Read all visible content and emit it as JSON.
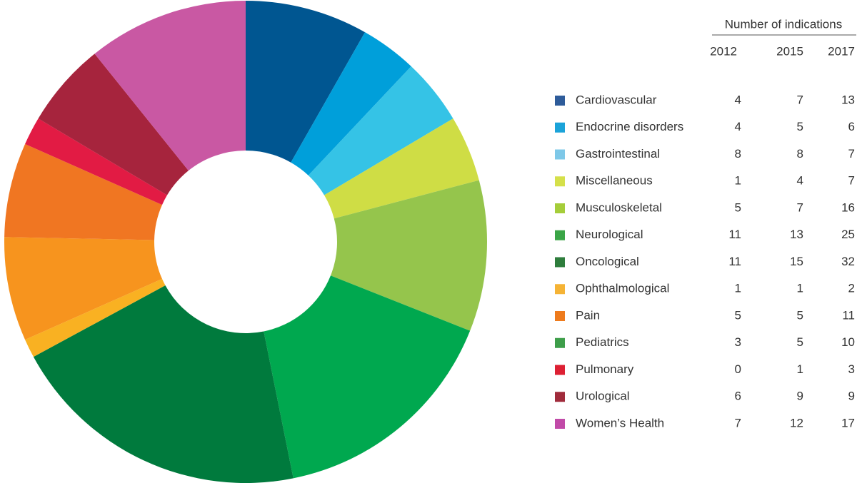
{
  "chart_data": {
    "type": "pie",
    "table_title": "Number of indications",
    "categories": [
      "Cardiovascular",
      "Endocrine disorders",
      "Gastrointestinal",
      "Miscellaneous",
      "Musculoskeletal",
      "Neurological",
      "Oncological",
      "Ophthalmological",
      "Pain",
      "Pediatrics",
      "Pulmonary",
      "Urological",
      "Women’s Health"
    ],
    "colors": [
      "#005691",
      "#009fda",
      "#35c3e6",
      "#cfdd45",
      "#95c54c",
      "#00a84f",
      "#007a3d",
      "#f9b122",
      "#f7941e",
      "#f07622",
      "#e21b44",
      "#a6243d",
      "#c958a3"
    ],
    "legend_colors": [
      "#2e5c9a",
      "#1ba3d9",
      "#7ec8e8",
      "#d5e04a",
      "#a5cd3a",
      "#3aa547",
      "#2e7d3c",
      "#f5b335",
      "#ee7b1d",
      "#3e9e4a",
      "#dd2033",
      "#a02b3b",
      "#c14aa8"
    ],
    "series": [
      {
        "name": "2012",
        "values": [
          4,
          4,
          8,
          1,
          5,
          11,
          11,
          1,
          5,
          3,
          0,
          6,
          7
        ]
      },
      {
        "name": "2015",
        "values": [
          7,
          5,
          8,
          4,
          7,
          13,
          15,
          1,
          5,
          5,
          1,
          9,
          12
        ]
      },
      {
        "name": "2017",
        "values": [
          13,
          6,
          7,
          7,
          16,
          25,
          32,
          2,
          11,
          10,
          3,
          9,
          17
        ]
      }
    ]
  }
}
